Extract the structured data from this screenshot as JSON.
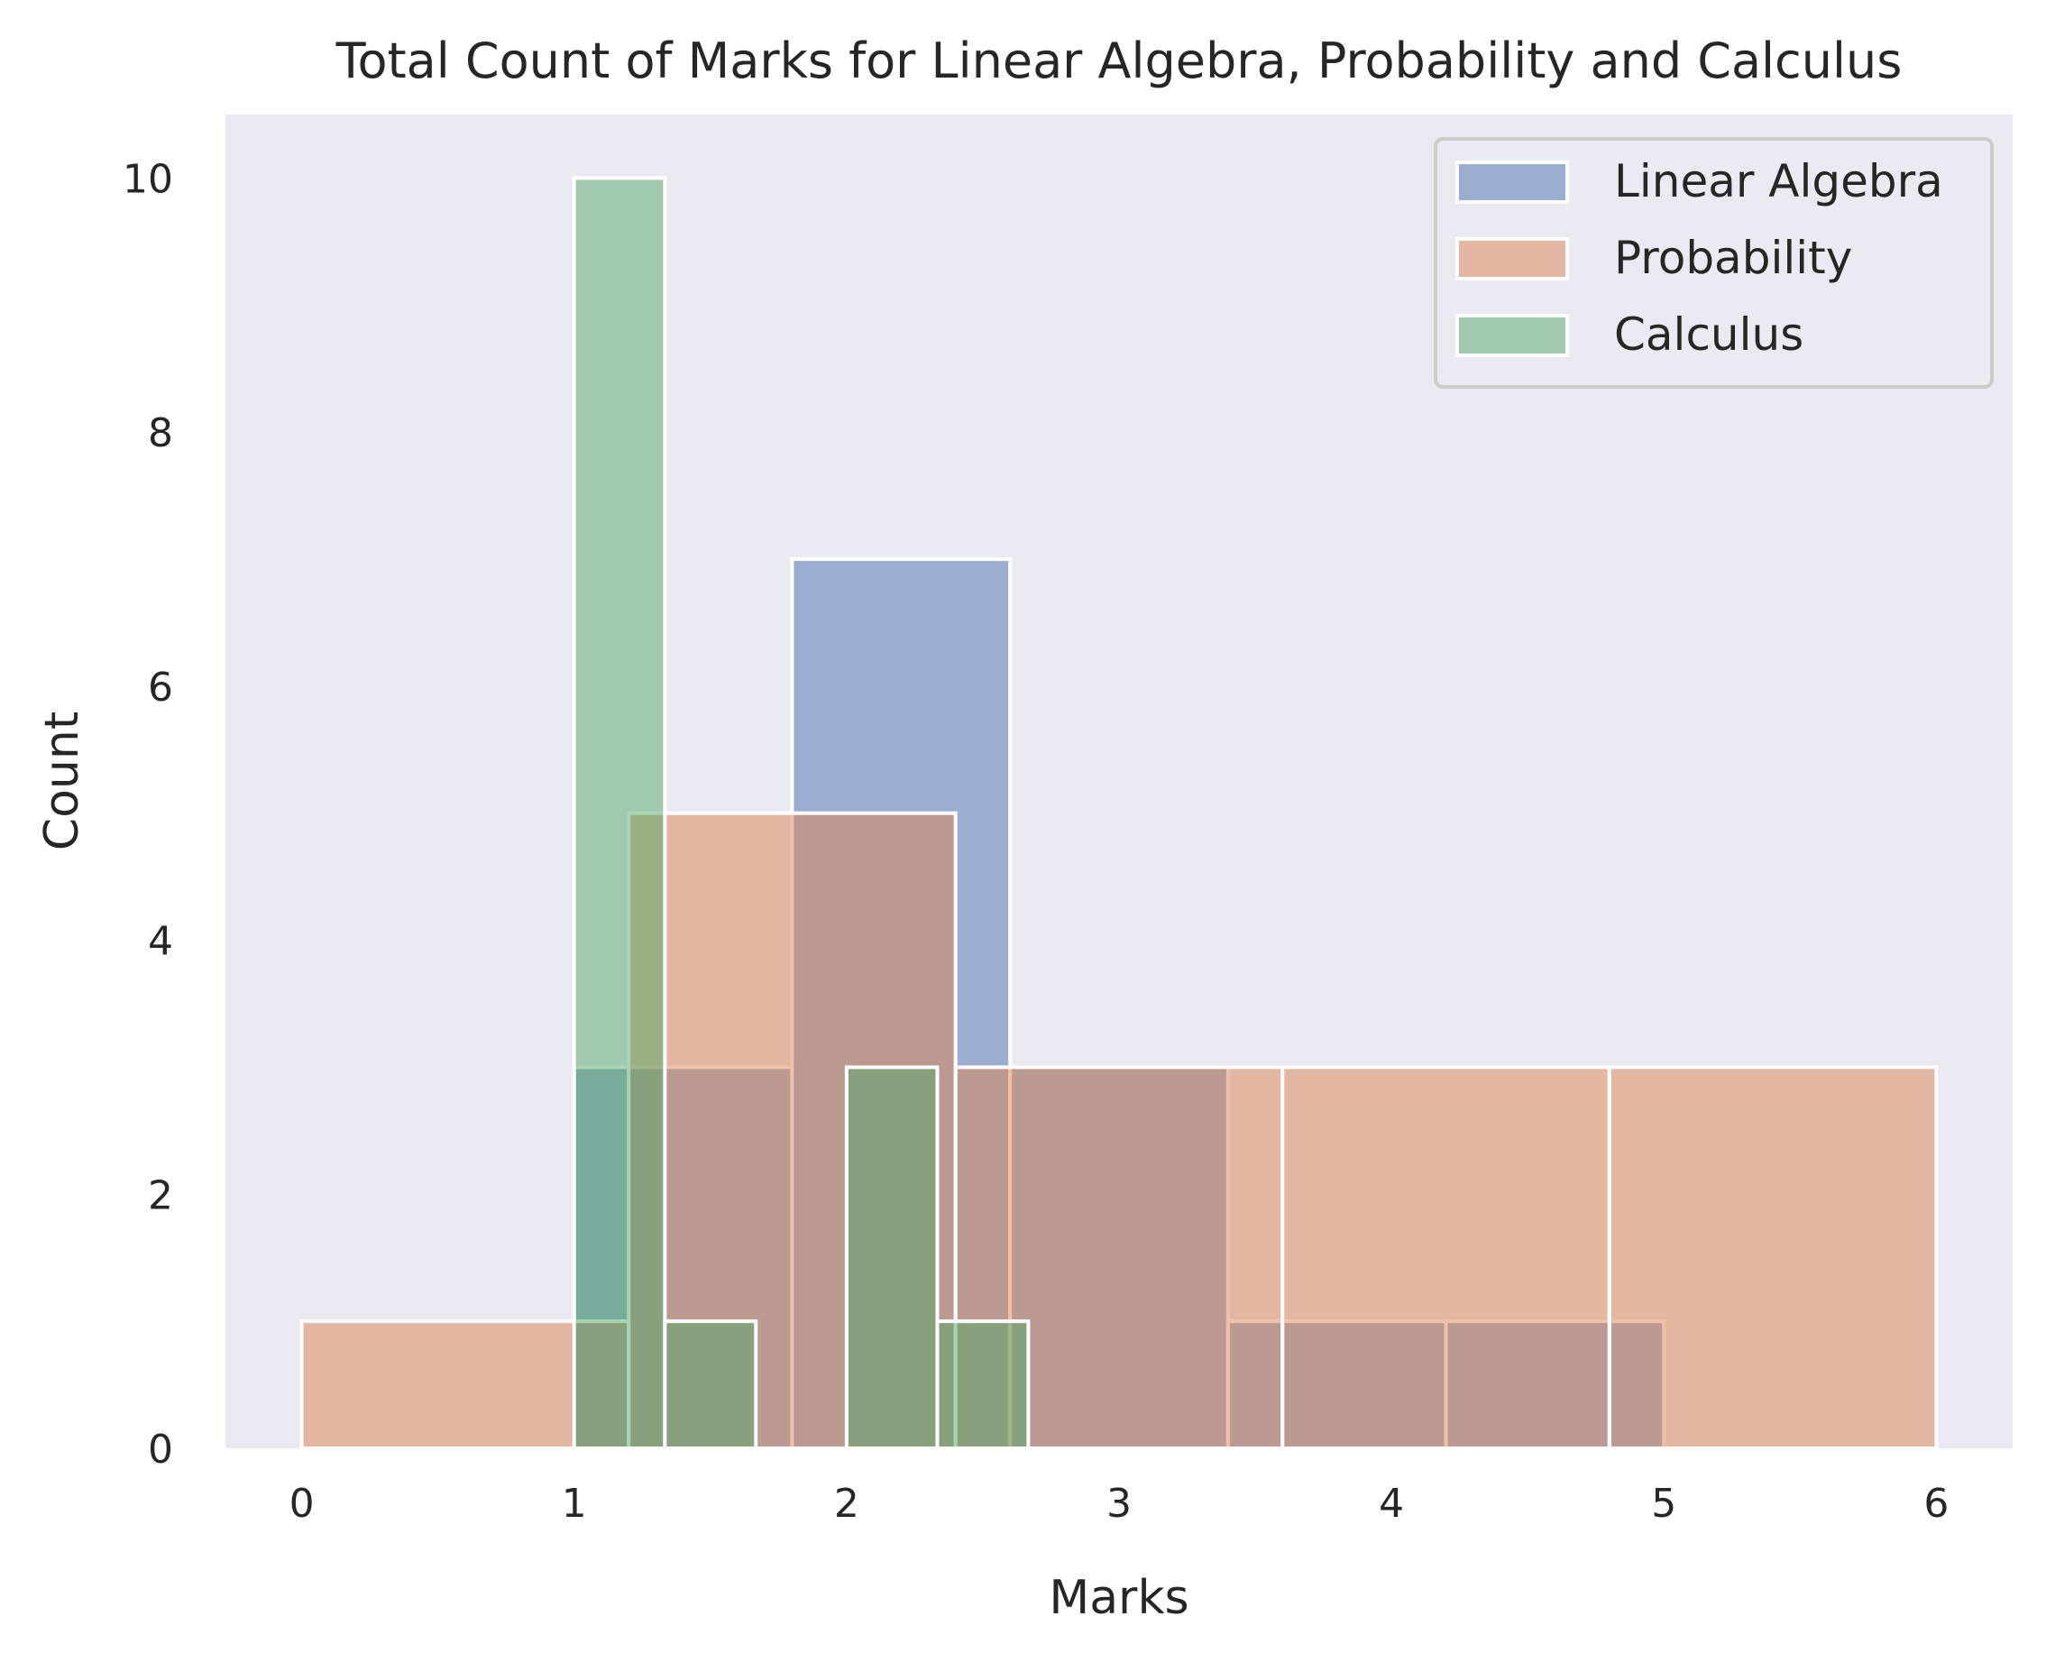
{
  "chart_data": {
    "type": "histogram",
    "title": "Total Count of Marks for Linear Algebra, Probability and Calculus",
    "xlabel": "Marks",
    "ylabel": "Count",
    "xlim": [
      -0.28,
      6.28
    ],
    "ylim": [
      0,
      10.5
    ],
    "xticks": [
      0,
      1,
      2,
      3,
      4,
      5,
      6
    ],
    "yticks": [
      0,
      2,
      4,
      6,
      8,
      10
    ],
    "grid": false,
    "background_color": "#EAEAF2",
    "legend": {
      "position": "top-right"
    },
    "series": [
      {
        "name": "Linear Algebra",
        "color": "#4C72B0",
        "alpha": 0.5,
        "bins": [
          {
            "x0": 1.0,
            "x1": 1.8,
            "count": 3
          },
          {
            "x0": 1.8,
            "x1": 2.6,
            "count": 7
          },
          {
            "x0": 2.6,
            "x1": 3.4,
            "count": 3
          },
          {
            "x0": 3.4,
            "x1": 4.2,
            "count": 1
          },
          {
            "x0": 4.2,
            "x1": 5.0,
            "count": 1
          }
        ]
      },
      {
        "name": "Probability",
        "color": "#DD8452",
        "alpha": 0.5,
        "bins": [
          {
            "x0": 0.0,
            "x1": 1.2,
            "count": 1
          },
          {
            "x0": 1.2,
            "x1": 2.4,
            "count": 5
          },
          {
            "x0": 2.4,
            "x1": 3.6,
            "count": 3
          },
          {
            "x0": 3.6,
            "x1": 4.8,
            "count": 3
          },
          {
            "x0": 4.8,
            "x1": 6.0,
            "count": 3
          }
        ]
      },
      {
        "name": "Calculus",
        "color": "#55A868",
        "alpha": 0.5,
        "bins": [
          {
            "x0": 1.0,
            "x1": 1.333,
            "count": 10
          },
          {
            "x0": 1.333,
            "x1": 1.667,
            "count": 1
          },
          {
            "x0": 1.667,
            "x1": 2.0,
            "count": 0
          },
          {
            "x0": 2.0,
            "x1": 2.333,
            "count": 3
          },
          {
            "x0": 2.333,
            "x1": 2.667,
            "count": 1
          }
        ]
      }
    ]
  }
}
